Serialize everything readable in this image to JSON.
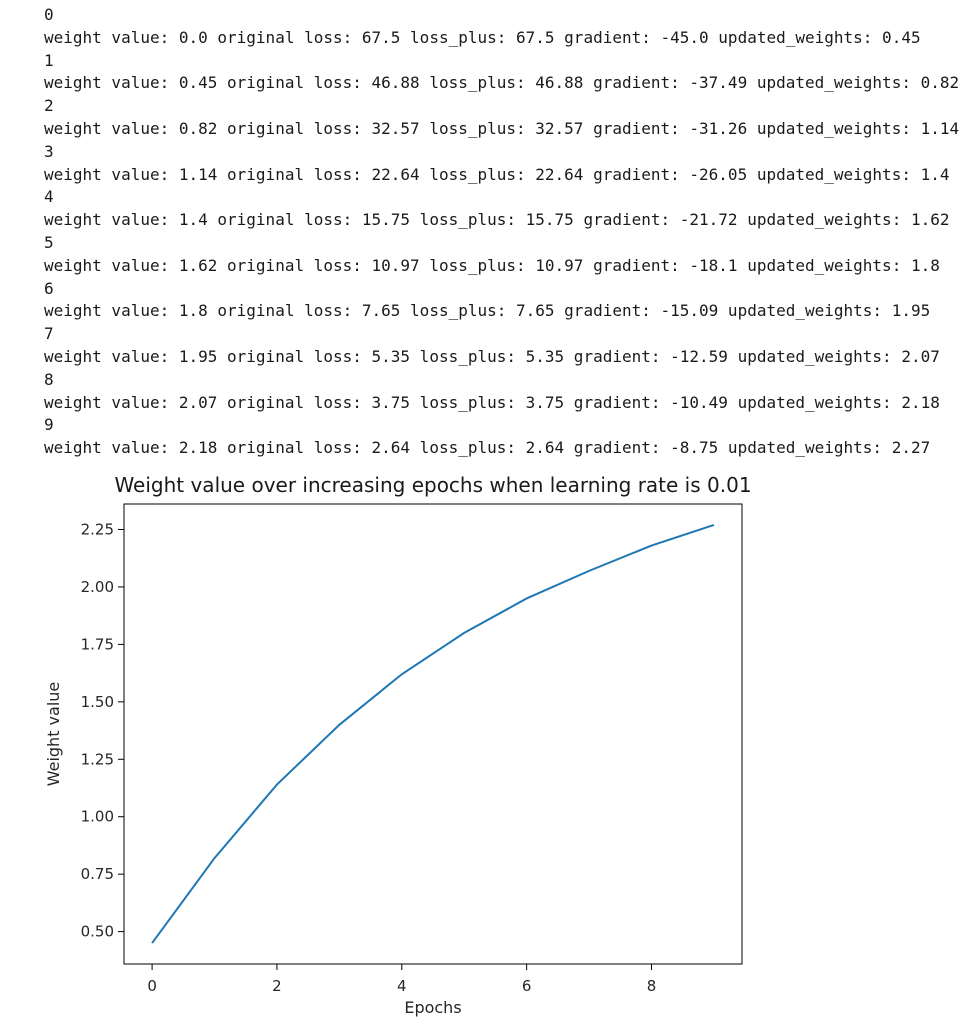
{
  "console": {
    "lines": [
      {
        "epoch": "0",
        "text": "weight value: 0.0 original loss: 67.5 loss_plus: 67.5 gradient: -45.0 updated_weights: 0.45"
      },
      {
        "epoch": "1",
        "text": "weight value: 0.45 original loss: 46.88 loss_plus: 46.88 gradient: -37.49 updated_weights: 0.82"
      },
      {
        "epoch": "2",
        "text": "weight value: 0.82 original loss: 32.57 loss_plus: 32.57 gradient: -31.26 updated_weights: 1.14"
      },
      {
        "epoch": "3",
        "text": "weight value: 1.14 original loss: 22.64 loss_plus: 22.64 gradient: -26.05 updated_weights: 1.4"
      },
      {
        "epoch": "4",
        "text": "weight value: 1.4 original loss: 15.75 loss_plus: 15.75 gradient: -21.72 updated_weights: 1.62"
      },
      {
        "epoch": "5",
        "text": "weight value: 1.62 original loss: 10.97 loss_plus: 10.97 gradient: -18.1 updated_weights: 1.8"
      },
      {
        "epoch": "6",
        "text": "weight value: 1.8 original loss: 7.65 loss_plus: 7.65 gradient: -15.09 updated_weights: 1.95"
      },
      {
        "epoch": "7",
        "text": "weight value: 1.95 original loss: 5.35 loss_plus: 5.35 gradient: -12.59 updated_weights: 2.07"
      },
      {
        "epoch": "8",
        "text": "weight value: 2.07 original loss: 3.75 loss_plus: 3.75 gradient: -10.49 updated_weights: 2.18"
      },
      {
        "epoch": "9",
        "text": "weight value: 2.18 original loss: 2.64 loss_plus: 2.64 gradient: -8.75 updated_weights: 2.27"
      }
    ]
  },
  "chart_data": {
    "type": "line",
    "title": "Weight value over increasing epochs when learning rate is 0.01",
    "xlabel": "Epochs",
    "ylabel": "Weight value",
    "x": [
      0,
      1,
      2,
      3,
      4,
      5,
      6,
      7,
      8,
      9
    ],
    "series": [
      {
        "values": [
          0.45,
          0.82,
          1.14,
          1.4,
          1.62,
          1.8,
          1.95,
          2.07,
          2.18,
          2.27
        ],
        "color": "#1f77b4"
      }
    ],
    "xticks": [
      0,
      2,
      4,
      6,
      8
    ],
    "xtick_labels": [
      "0",
      "2",
      "4",
      "6",
      "8"
    ],
    "yticks": [
      0.5,
      0.75,
      1.0,
      1.25,
      1.5,
      1.75,
      2.0,
      2.25
    ],
    "ytick_labels": [
      "0.50",
      "0.75",
      "1.00",
      "1.25",
      "1.50",
      "1.75",
      "2.00",
      "2.25"
    ],
    "xlim": [
      -0.45,
      9.45
    ],
    "ylim": [
      0.359,
      2.361
    ],
    "grid": false,
    "legend": "none"
  }
}
